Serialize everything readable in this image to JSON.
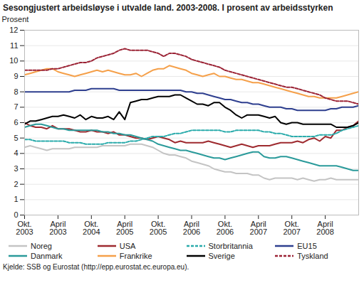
{
  "chart_data": {
    "type": "line",
    "title": "Sesongjustert arbeidsløyse i utvalde land. 2003-2008. I prosent av arbeidsstyrken",
    "y_label": "Prosent",
    "source": "Kjelde: SSB og Eurostat (http://epp.eurostat.ec.europa.eu).",
    "categories": [
      "Okt. 2003",
      null,
      null,
      null,
      null,
      null,
      "April 2003",
      null,
      null,
      null,
      null,
      null,
      "Okt. 2004",
      null,
      null,
      null,
      null,
      null,
      "April 2005",
      null,
      null,
      null,
      null,
      null,
      "Okt. 2005",
      null,
      null,
      null,
      null,
      null,
      "April 2006",
      null,
      null,
      null,
      null,
      null,
      "Okt. 2006",
      null,
      null,
      null,
      null,
      null,
      "April 2007",
      null,
      null,
      null,
      null,
      null,
      "Okt. 2007",
      null,
      null,
      null,
      null,
      null,
      "April 2008",
      null,
      null,
      null,
      null,
      null,
      null
    ],
    "ylim": [
      0,
      12
    ],
    "yticks": [
      0,
      1,
      2,
      3,
      4,
      5,
      6,
      7,
      8,
      9,
      10,
      11,
      12
    ],
    "grid": true,
    "legend": "bottom",
    "series": [
      {
        "name": "Noreg",
        "color": "#c4c4c4",
        "line_style": "solid",
        "values": [
          4.4,
          4.5,
          4.4,
          4.3,
          4.2,
          4.3,
          4.3,
          4.3,
          4.3,
          4.4,
          4.4,
          4.4,
          4.4,
          4.4,
          4.5,
          4.5,
          4.5,
          4.5,
          4.5,
          4.6,
          4.6,
          4.6,
          4.5,
          4.4,
          4.2,
          4.0,
          3.9,
          3.9,
          3.8,
          3.7,
          3.5,
          3.4,
          3.3,
          3.2,
          3.0,
          2.9,
          2.8,
          2.8,
          2.7,
          2.7,
          2.7,
          2.6,
          2.6,
          2.4,
          2.3,
          2.4,
          2.4,
          2.4,
          2.4,
          2.3,
          2.4,
          2.3,
          2.2,
          2.3,
          2.3,
          2.4,
          2.3,
          2.3,
          2.3,
          2.3,
          2.3
        ]
      },
      {
        "name": "USA",
        "color": "#9e2a2f",
        "line_style": "solid",
        "values": [
          6.0,
          5.8,
          5.7,
          5.7,
          5.6,
          5.8,
          5.6,
          5.6,
          5.6,
          5.5,
          5.4,
          5.4,
          5.5,
          5.4,
          5.4,
          5.3,
          5.4,
          5.2,
          5.2,
          5.1,
          5.0,
          5.0,
          4.9,
          5.0,
          5.1,
          5.0,
          4.9,
          4.7,
          4.8,
          4.7,
          4.7,
          4.7,
          4.7,
          4.8,
          4.7,
          4.6,
          4.5,
          4.4,
          4.5,
          4.6,
          4.5,
          4.4,
          4.5,
          4.5,
          4.5,
          4.6,
          4.7,
          4.7,
          4.7,
          4.8,
          4.7,
          4.9,
          5.0,
          4.8,
          5.1,
          5.0,
          5.5,
          5.5,
          5.7,
          5.8,
          6.1
        ]
      },
      {
        "name": "Storbritannia",
        "color": "#2aabab",
        "line_style": "dashed",
        "values": [
          4.9,
          4.9,
          4.8,
          4.8,
          4.8,
          4.8,
          4.8,
          4.8,
          4.7,
          4.7,
          4.7,
          4.6,
          4.6,
          4.6,
          4.6,
          4.7,
          4.7,
          4.7,
          4.7,
          4.8,
          4.8,
          4.9,
          5.0,
          5.1,
          5.1,
          5.1,
          5.2,
          5.3,
          5.3,
          5.4,
          5.5,
          5.5,
          5.5,
          5.5,
          5.5,
          5.5,
          5.4,
          5.4,
          5.5,
          5.5,
          5.5,
          5.5,
          5.5,
          5.4,
          5.4,
          5.3,
          5.3,
          5.2,
          5.1,
          5.1,
          5.1,
          5.1,
          5.1,
          5.2,
          5.2,
          5.2,
          5.3,
          5.5,
          5.6,
          5.7,
          5.8
        ]
      },
      {
        "name": "EU15",
        "color": "#2e3f8f",
        "line_style": "solid",
        "values": [
          8.0,
          8.0,
          8.0,
          8.0,
          8.0,
          8.0,
          8.0,
          8.0,
          8.0,
          8.1,
          8.1,
          8.1,
          8.2,
          8.2,
          8.2,
          8.2,
          8.2,
          8.1,
          8.1,
          8.1,
          8.1,
          8.1,
          8.1,
          8.1,
          8.1,
          8.1,
          8.1,
          8.1,
          8.1,
          8.0,
          8.0,
          7.9,
          7.9,
          7.8,
          7.7,
          7.6,
          7.5,
          7.5,
          7.4,
          7.3,
          7.3,
          7.2,
          7.2,
          7.1,
          7.0,
          7.0,
          7.0,
          6.9,
          6.9,
          6.8,
          6.8,
          6.8,
          6.8,
          6.8,
          6.8,
          6.9,
          6.9,
          7.0,
          7.0,
          7.0,
          7.1
        ]
      },
      {
        "name": "Danmark",
        "color": "#2a9a9a",
        "line_style": "solid",
        "values": [
          5.7,
          5.8,
          5.9,
          5.9,
          5.8,
          5.7,
          5.6,
          5.6,
          5.5,
          5.5,
          5.5,
          5.5,
          5.5,
          5.5,
          5.4,
          5.4,
          5.3,
          5.3,
          5.2,
          5.2,
          5.1,
          5.0,
          4.9,
          4.8,
          4.6,
          4.5,
          4.4,
          4.3,
          4.2,
          4.2,
          4.1,
          4.0,
          3.9,
          3.8,
          3.7,
          3.7,
          3.6,
          3.7,
          3.8,
          3.9,
          4.0,
          4.1,
          4.1,
          3.8,
          3.7,
          3.7,
          3.8,
          3.8,
          3.7,
          3.6,
          3.5,
          3.4,
          3.3,
          3.2,
          3.2,
          3.2,
          3.2,
          3.1,
          3.0,
          2.9,
          2.9
        ]
      },
      {
        "name": "Frankrike",
        "color": "#f5a04a",
        "line_style": "solid",
        "values": [
          9.1,
          9.2,
          9.3,
          9.4,
          9.5,
          9.5,
          9.3,
          9.2,
          9.1,
          9.0,
          9.1,
          9.2,
          9.3,
          9.4,
          9.3,
          9.4,
          9.3,
          9.2,
          9.1,
          9.1,
          9.2,
          9.0,
          9.2,
          9.4,
          9.5,
          9.5,
          9.7,
          9.6,
          9.5,
          9.4,
          9.2,
          9.1,
          9.0,
          9.1,
          9.2,
          9.0,
          9.0,
          8.9,
          8.8,
          8.8,
          8.7,
          8.6,
          8.6,
          8.5,
          8.4,
          8.3,
          8.2,
          8.1,
          8.0,
          7.9,
          7.8,
          7.7,
          7.7,
          7.6,
          7.6,
          7.6,
          7.6,
          7.7,
          7.8,
          7.9,
          8.0
        ]
      },
      {
        "name": "Sverige",
        "color": "#000000",
        "line_style": "solid",
        "values": [
          5.9,
          6.1,
          6.1,
          6.2,
          6.3,
          6.4,
          6.4,
          6.5,
          6.4,
          6.3,
          6.5,
          6.2,
          6.4,
          6.3,
          6.3,
          6.4,
          6.2,
          6.7,
          6.2,
          7.3,
          7.4,
          7.5,
          7.5,
          7.6,
          7.7,
          7.7,
          7.7,
          7.8,
          7.8,
          7.6,
          7.4,
          7.2,
          7.2,
          7.1,
          7.3,
          7.3,
          7.0,
          6.8,
          6.5,
          6.3,
          6.5,
          6.5,
          6.5,
          6.4,
          6.3,
          6.4,
          6.0,
          5.9,
          6.0,
          6.0,
          5.9,
          5.9,
          5.9,
          5.9,
          5.9,
          5.9,
          5.7,
          5.7,
          5.7,
          5.8,
          6.0
        ]
      },
      {
        "name": "Tyskland",
        "color": "#9b2335",
        "line_style": "dashed",
        "values": [
          9.4,
          9.4,
          9.4,
          9.4,
          9.4,
          9.5,
          9.5,
          9.6,
          9.7,
          9.8,
          9.9,
          9.9,
          10.0,
          10.2,
          10.3,
          10.4,
          10.5,
          10.7,
          10.8,
          10.7,
          10.7,
          10.7,
          10.7,
          10.6,
          10.5,
          10.3,
          10.5,
          10.5,
          10.4,
          10.3,
          10.1,
          10.0,
          9.9,
          9.8,
          9.7,
          9.6,
          9.4,
          9.3,
          9.2,
          9.1,
          9.0,
          8.9,
          8.8,
          8.7,
          8.6,
          8.5,
          8.4,
          8.3,
          8.3,
          8.2,
          8.1,
          8.0,
          7.9,
          7.8,
          7.6,
          7.5,
          7.4,
          7.4,
          7.4,
          7.3,
          7.2
        ]
      }
    ]
  }
}
